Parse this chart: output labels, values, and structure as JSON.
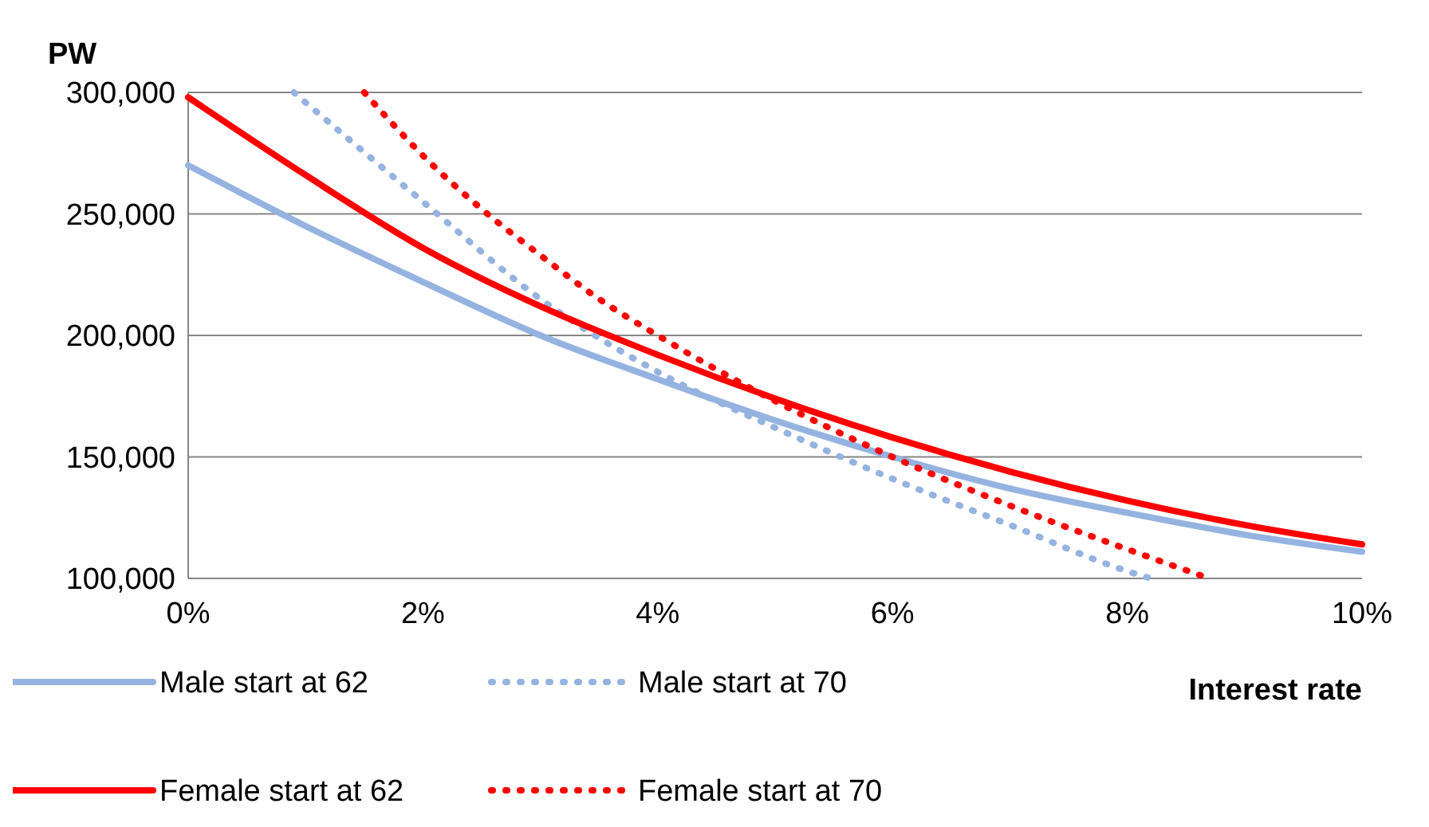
{
  "chart_data": {
    "type": "line",
    "xlabel": "Interest rate",
    "ylabel": "PW",
    "xlim": [
      0,
      10
    ],
    "xticks": [
      {
        "value": 0,
        "label": "0%"
      },
      {
        "value": 2,
        "label": "2%"
      },
      {
        "value": 4,
        "label": "4%"
      },
      {
        "value": 6,
        "label": "6%"
      },
      {
        "value": 8,
        "label": "8%"
      },
      {
        "value": 10,
        "label": "10%"
      }
    ],
    "ylim": [
      100000,
      300000
    ],
    "yticks": [
      {
        "value": 100000,
        "label": "100,000"
      },
      {
        "value": 150000,
        "label": "150,000"
      },
      {
        "value": 200000,
        "label": "200,000"
      },
      {
        "value": 250000,
        "label": "250,000"
      },
      {
        "value": 300000,
        "label": "300,000"
      }
    ],
    "grid": "y",
    "legend": "bottom",
    "marker": "none",
    "series": [
      {
        "name": "Male start at 62",
        "color": "#95b3e0",
        "line_style": "solid",
        "x": [
          0,
          1,
          2,
          3,
          4,
          5,
          6,
          7,
          8,
          9,
          10
        ],
        "values": [
          270000,
          245000,
          222000,
          200000,
          182000,
          165000,
          150000,
          137000,
          127000,
          118000,
          111000
        ]
      },
      {
        "name": "Male start at 70",
        "color": "#95b3e0",
        "line_style": "dotted",
        "x": [
          0.9,
          2,
          3,
          4,
          5,
          6,
          7,
          8,
          8.2
        ],
        "values": [
          300000,
          255000,
          215000,
          185000,
          162000,
          141000,
          122000,
          103000,
          100000
        ]
      },
      {
        "name": "Female start at 62",
        "color": "#ff0000",
        "line_style": "solid",
        "x": [
          0,
          1,
          2,
          3,
          4,
          5,
          6,
          7,
          8,
          9,
          10
        ],
        "values": [
          298000,
          266000,
          236000,
          212000,
          192000,
          174000,
          158000,
          144000,
          132000,
          122000,
          114000
        ]
      },
      {
        "name": "Female start at 70",
        "color": "#ff0000",
        "line_style": "dotted",
        "x": [
          1.5,
          2,
          2.5,
          3,
          3.5,
          4,
          5,
          6,
          7,
          8,
          8.7
        ],
        "values": [
          300000,
          274000,
          252000,
          233000,
          215000,
          200000,
          173000,
          150000,
          130000,
          112000,
          100000
        ]
      }
    ]
  }
}
